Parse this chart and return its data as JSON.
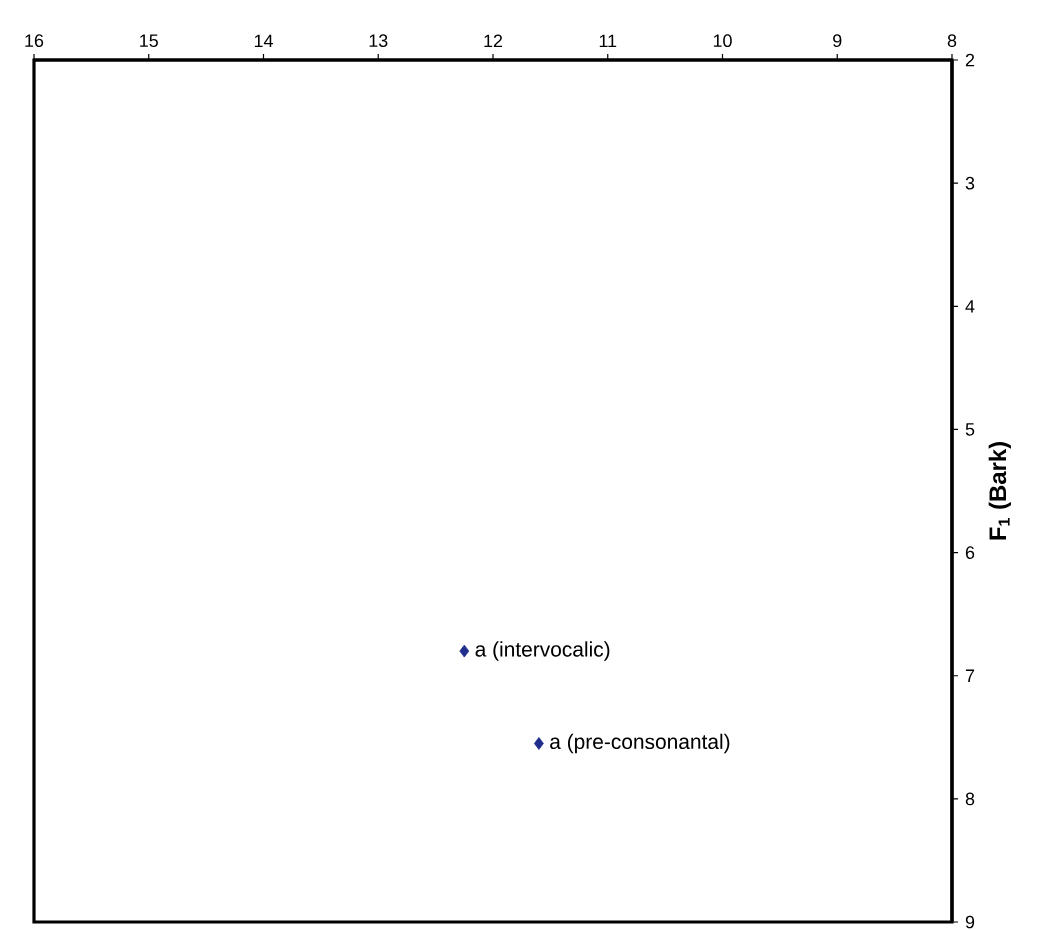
{
  "chart_data": {
    "type": "scatter",
    "ylabel": "F$_{1}$ (Bark)",
    "xlim": [
      16,
      8
    ],
    "xticks": [
      16,
      15,
      14,
      13,
      12,
      11,
      10,
      9,
      8
    ],
    "ylim": [
      9,
      2
    ],
    "yticks": [
      2,
      3,
      4,
      5,
      6,
      7,
      8,
      9
    ],
    "marker": "diamond",
    "grid": false,
    "series": [
      {
        "name": "a (intervocalic)",
        "color": "#1f2d8c",
        "x": [
          12.25
        ],
        "values": [
          6.8
        ]
      },
      {
        "name": "a (pre-consonantal)",
        "color": "#1f2d8c",
        "x": [
          11.6
        ],
        "values": [
          7.55
        ]
      }
    ]
  }
}
